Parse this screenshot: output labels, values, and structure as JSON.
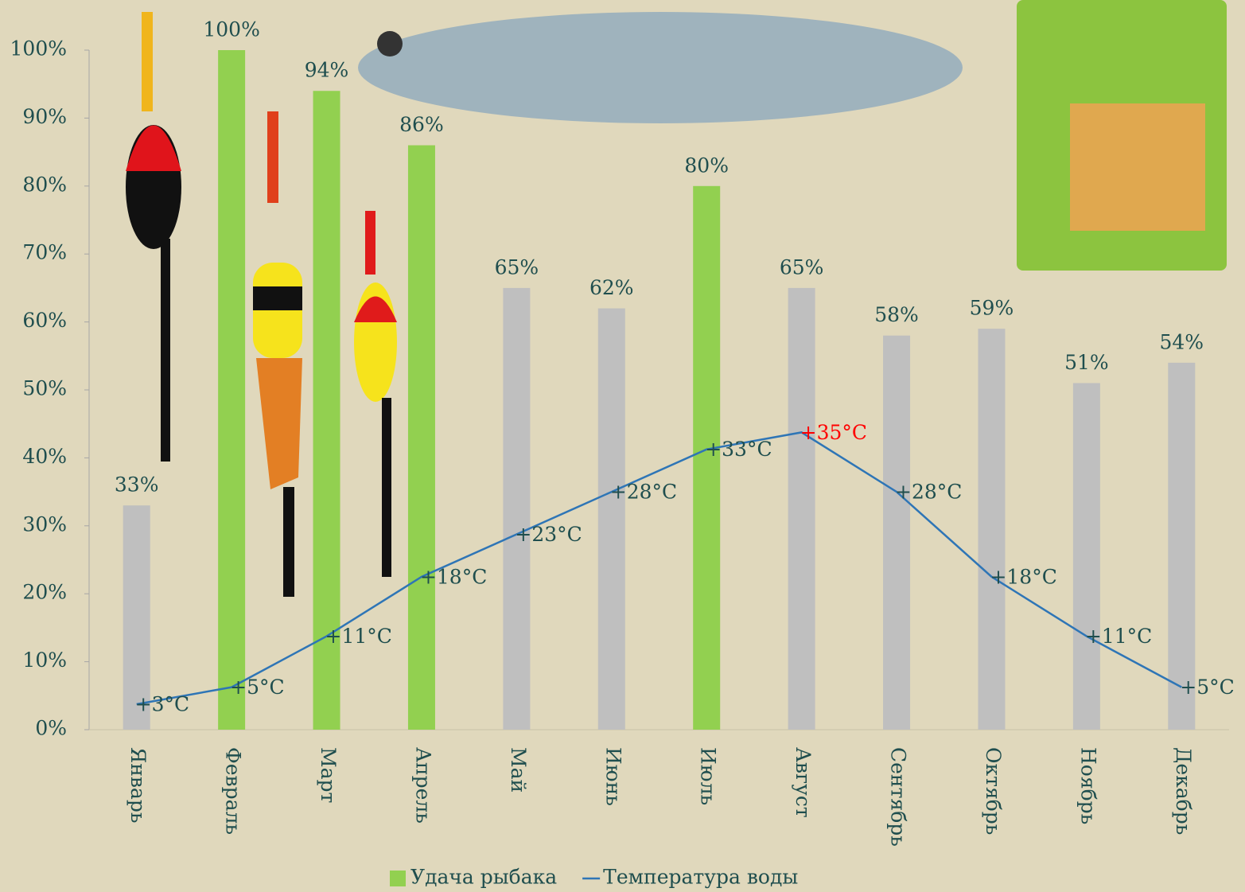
{
  "chart_data": {
    "type": "bar-line",
    "categories": [
      "Январь",
      "Февраль",
      "Март",
      "Апрель",
      "Май",
      "Июнь",
      "Июль",
      "Август",
      "Сентябрь",
      "Октябрь",
      "Ноябрь",
      "Декабрь"
    ],
    "series": [
      {
        "name": "Удача рыбака",
        "type": "bar",
        "color": "#92d050",
        "colors": [
          "#bfbfbf",
          "#92d050",
          "#92d050",
          "#92d050",
          "#bfbfbf",
          "#bfbfbf",
          "#92d050",
          "#bfbfbf",
          "#bfbfbf",
          "#bfbfbf",
          "#bfbfbf",
          "#bfbfbf"
        ],
        "values": [
          33,
          100,
          94,
          86,
          65,
          62,
          80,
          65,
          58,
          59,
          51,
          54
        ],
        "value_labels": [
          "33%",
          "100%",
          "94%",
          "86%",
          "65%",
          "62%",
          "80%",
          "65%",
          "58%",
          "59%",
          "51%",
          "54%"
        ]
      },
      {
        "name": "Температура воды",
        "type": "line",
        "axis": "y2",
        "color": "#2e75b6",
        "values": [
          3,
          5,
          11,
          18,
          23,
          28,
          33,
          35,
          28,
          18,
          11,
          5
        ],
        "value_labels": [
          "+3°C",
          "+5°C",
          "+11°C",
          "+18°C",
          "+23°C",
          "+28°C",
          "+33°C",
          "+35°C",
          "+28°C",
          "+18°C",
          "+11°C",
          "+5°C"
        ],
        "value_label_colors": [
          "#1f4e4e",
          "#1f4e4e",
          "#1f4e4e",
          "#1f4e4e",
          "#1f4e4e",
          "#1f4e4e",
          "#1f4e4e",
          "#ff0000",
          "#1f4e4e",
          "#1f4e4e",
          "#1f4e4e",
          "#1f4e4e"
        ]
      }
    ],
    "ylim": [
      0,
      100
    ],
    "yticks": [
      {
        "value": 0,
        "label": "0%"
      },
      {
        "value": 10,
        "label": "10%"
      },
      {
        "value": 20,
        "label": "20%"
      },
      {
        "value": 30,
        "label": "30%"
      },
      {
        "value": 40,
        "label": "40%"
      },
      {
        "value": 50,
        "label": "50%"
      },
      {
        "value": 60,
        "label": "60%"
      },
      {
        "value": 70,
        "label": "70%"
      },
      {
        "value": 80,
        "label": "80%"
      },
      {
        "value": 90,
        "label": "90%"
      },
      {
        "value": 100,
        "label": "100%"
      }
    ],
    "y2lim": [
      0,
      80
    ],
    "legend": "bottom"
  }
}
